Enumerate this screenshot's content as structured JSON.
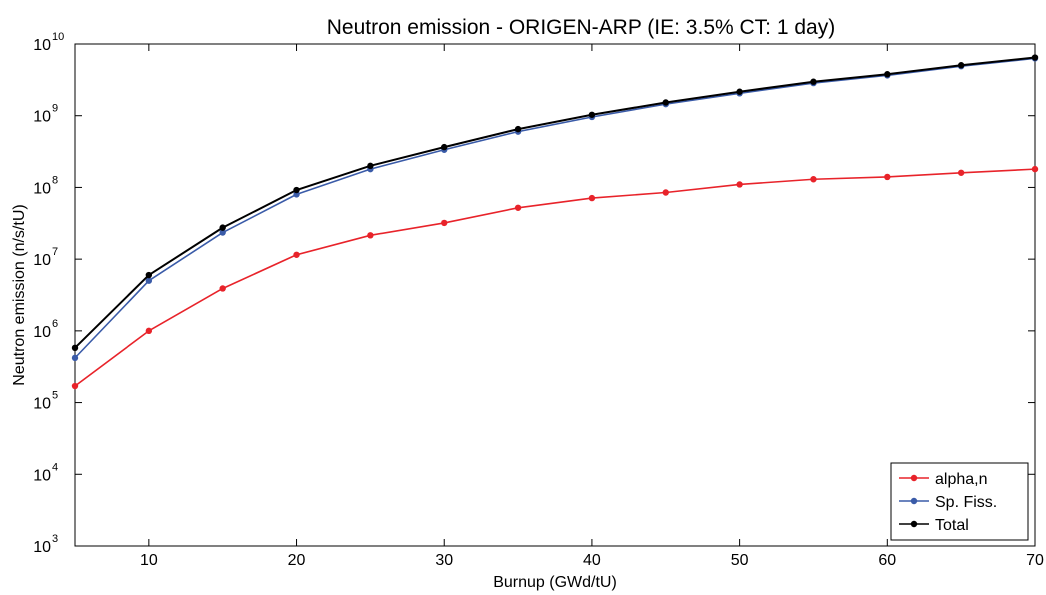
{
  "chart_data": {
    "type": "line",
    "title": "Neutron emission - ORIGEN-ARP (IE: 3.5%   CT: 1 day)",
    "xlabel": "Burnup (GWd/tU)",
    "ylabel": "Neutron emission (n/s/tU)",
    "xlim": [
      5,
      70
    ],
    "ylim": [
      1000,
      10000000000
    ],
    "yscale": "log",
    "grid": false,
    "legend_position": "bottom-right",
    "x_ticks": [
      "10",
      "20",
      "30",
      "40",
      "50",
      "60",
      "70"
    ],
    "y_ticks": [
      {
        "base": "10",
        "exp": "3"
      },
      {
        "base": "10",
        "exp": "4"
      },
      {
        "base": "10",
        "exp": "5"
      },
      {
        "base": "10",
        "exp": "6"
      },
      {
        "base": "10",
        "exp": "7"
      },
      {
        "base": "10",
        "exp": "8"
      },
      {
        "base": "10",
        "exp": "9"
      },
      {
        "base": "10",
        "exp": "10"
      }
    ],
    "x": [
      5,
      10,
      15,
      20,
      25,
      30,
      35,
      40,
      45,
      50,
      55,
      60,
      65,
      70
    ],
    "series": [
      {
        "name": "alpha,n",
        "color": "#e8232a",
        "values": [
          170000,
          1000000,
          3900000,
          11500000,
          21500000,
          32000000,
          52000000,
          71000000,
          85000000,
          110000000,
          130000000,
          140000000,
          160000000,
          180000000
        ]
      },
      {
        "name": "Sp. Fiss.",
        "color": "#3a5ba8",
        "values": [
          420000,
          5000000,
          23500000,
          80000000,
          180000000,
          335000000,
          600000000,
          960000000,
          1450000000,
          2050000000,
          2850000000,
          3650000000,
          4900000000,
          6300000000
        ]
      },
      {
        "name": "Total",
        "color": "#000000",
        "values": [
          580000,
          6000000,
          27500000,
          92000000,
          200000000,
          365000000,
          650000000,
          1030000000,
          1530000000,
          2160000000,
          2980000000,
          3790000000,
          5060000000,
          6480000000
        ]
      }
    ]
  }
}
